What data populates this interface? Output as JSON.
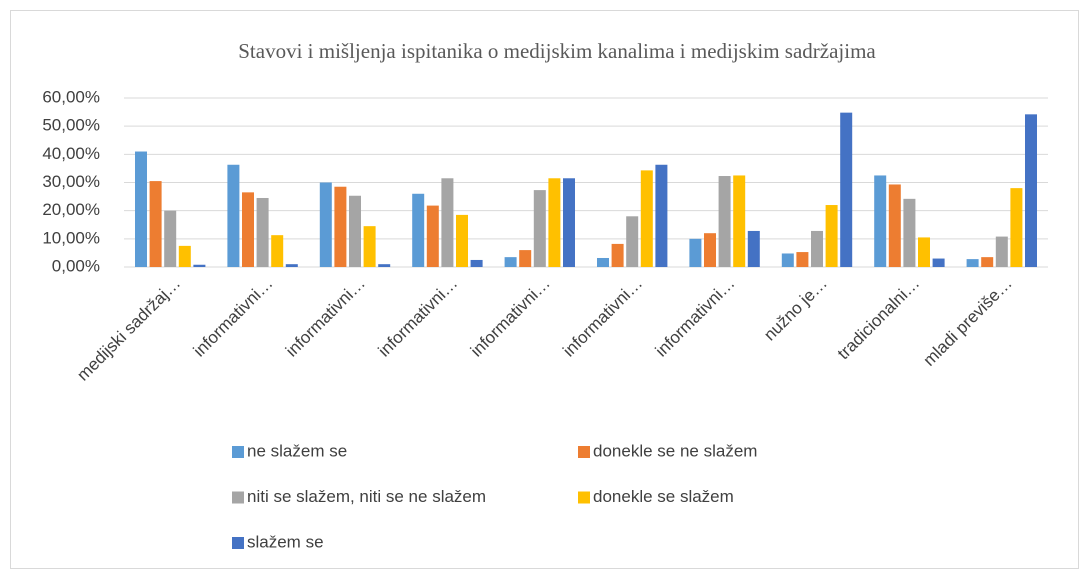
{
  "chart_data": {
    "type": "bar",
    "title": "Stavovi i mišljenja ispitanika o medijskim kanalima i medijskim sadržajima",
    "categories": [
      "medijski sadržaj…",
      "informativni…",
      "informativni…",
      "informativni…",
      "informativni…",
      "informativni…",
      "informativni…",
      "nužno je…",
      "tradicionalni…",
      "mladi previše…"
    ],
    "series": [
      {
        "name": "ne slažem se",
        "color": "#5b9bd5",
        "values": [
          41,
          36.3,
          30,
          26,
          3.5,
          3.2,
          10,
          4.8,
          32.5,
          2.8
        ]
      },
      {
        "name": "donekle se ne slažem",
        "color": "#ed7d31",
        "values": [
          30.5,
          26.5,
          28.5,
          21.8,
          6,
          8.2,
          12,
          5.3,
          29.3,
          3.5
        ]
      },
      {
        "name": "niti se slažem, niti se ne slažem",
        "color": "#a5a5a5",
        "values": [
          20,
          24.5,
          25.3,
          31.5,
          27.3,
          18,
          32.3,
          12.8,
          24.2,
          10.8
        ]
      },
      {
        "name": "donekle se slažem",
        "color": "#ffc000",
        "values": [
          7.5,
          11.3,
          14.5,
          18.5,
          31.5,
          34.3,
          32.5,
          22,
          10.5,
          28
        ]
      },
      {
        "name": "slažem se",
        "color": "#4472c4",
        "values": [
          0.8,
          1,
          1,
          2.5,
          31.5,
          36.3,
          12.8,
          54.8,
          3,
          54.2
        ]
      }
    ],
    "ylim": [
      0,
      60
    ],
    "yticks": [
      {
        "value": 0,
        "label": "0,00%"
      },
      {
        "value": 10,
        "label": "10,00%"
      },
      {
        "value": 20,
        "label": "20,00%"
      },
      {
        "value": 30,
        "label": "30,00%"
      },
      {
        "value": 40,
        "label": "40,00%"
      },
      {
        "value": 50,
        "label": "50,00%"
      },
      {
        "value": 60,
        "label": "60,00%"
      }
    ],
    "grid": true,
    "legend": "bottom"
  }
}
